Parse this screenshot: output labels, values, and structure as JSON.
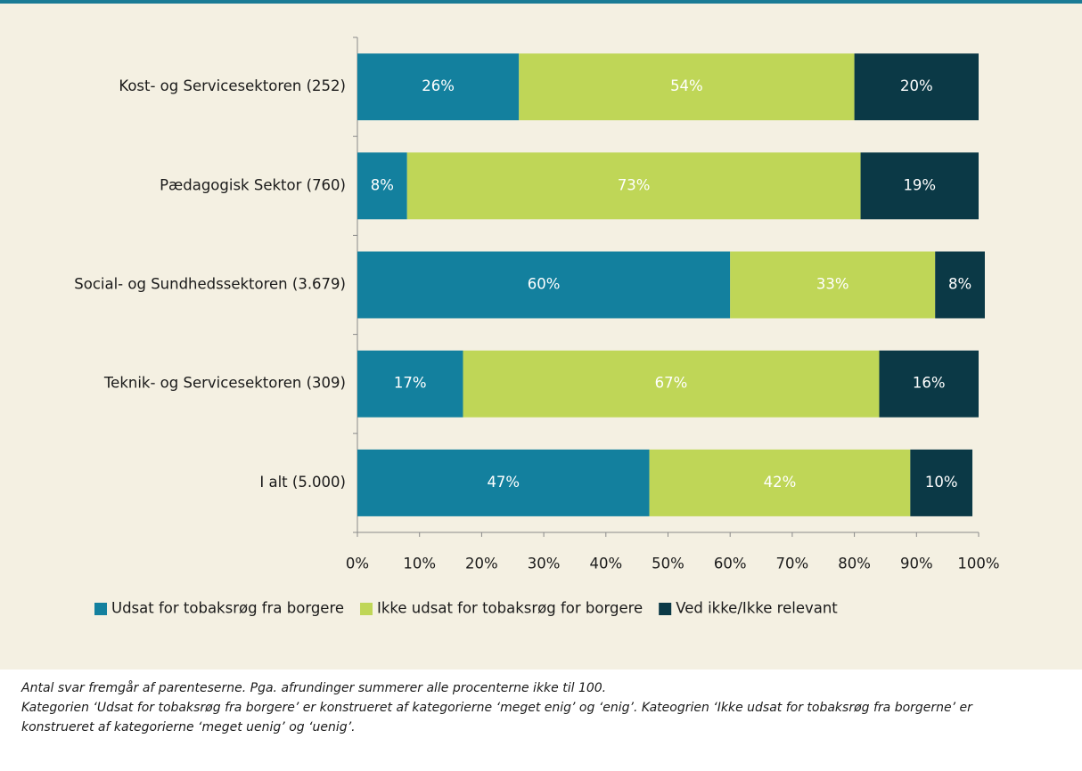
{
  "chart_data": {
    "type": "bar",
    "orientation": "horizontal",
    "stacked": true,
    "categories": [
      "Kost- og Servicesektoren (252)",
      "Pædagogisk Sektor (760)",
      "Social- og Sundhedssektoren (3.679)",
      "Teknik- og Servicesektoren (309)",
      "I alt (5.000)"
    ],
    "series": [
      {
        "name": "Udsat for tobaksrøg fra borgere",
        "color": "#13809e",
        "values": [
          26,
          8,
          60,
          17,
          47
        ],
        "value_labels": [
          "26%",
          "8%",
          "60%",
          "17%",
          "47%"
        ]
      },
      {
        "name": "Ikke udsat for tobaksrøg for borgere",
        "color": "#bfd657",
        "values": [
          54,
          73,
          33,
          67,
          42
        ],
        "value_labels": [
          "54%",
          "73%",
          "33%",
          "67%",
          "42%"
        ]
      },
      {
        "name": "Ved ikke/Ikke relevant",
        "color": "#0b3946",
        "values": [
          20,
          19,
          8,
          16,
          10
        ],
        "value_labels": [
          "20%",
          "19%",
          "8%",
          "16%",
          "10%"
        ]
      }
    ],
    "xlim": [
      0,
      100
    ],
    "xticks": [
      {
        "value": 0,
        "label": "0%"
      },
      {
        "value": 10,
        "label": "10%"
      },
      {
        "value": 20,
        "label": "20%"
      },
      {
        "value": 30,
        "label": "30%"
      },
      {
        "value": 40,
        "label": "40%"
      },
      {
        "value": 50,
        "label": "50%"
      },
      {
        "value": 60,
        "label": "60%"
      },
      {
        "value": 70,
        "label": "70%"
      },
      {
        "value": 80,
        "label": "80%"
      },
      {
        "value": 90,
        "label": "90%"
      },
      {
        "value": 100,
        "label": "100%"
      }
    ],
    "legend": "bottom",
    "notes": [
      "Antal svar fremgår af parenteserne. Pga. afrundinger summerer alle procenterne ikke til 100.",
      "Kategorien ‘Udsat for tobaksrøg fra borgere’ er konstrueret af kategorierne ‘meget enig’ og ‘enig’. Kateogrien ‘Ikke udsat for tobaksrøg fra borgerne’ er konstrueret af kategorierne ‘meget uenig’ og ‘uenig’."
    ]
  }
}
